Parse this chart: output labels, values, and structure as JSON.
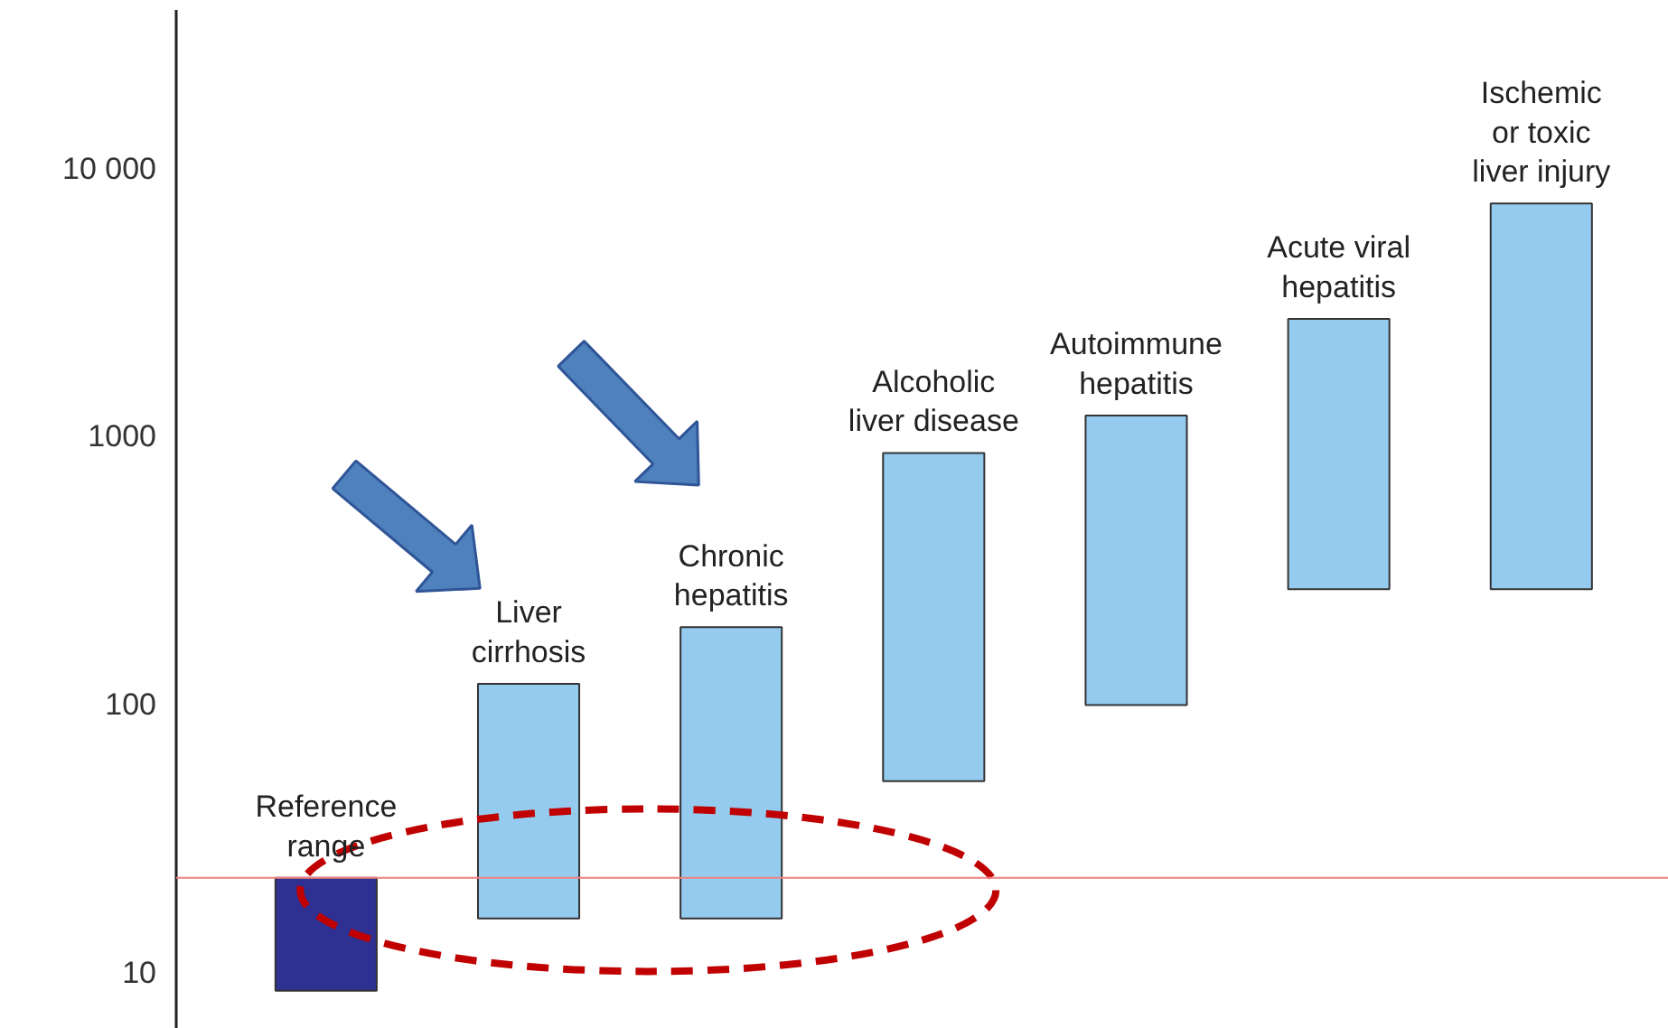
{
  "chart_data": {
    "type": "bar",
    "categories": [
      "Reference\nrange",
      "Liver\ncirrhosis",
      "Chronic\nhepatitis",
      "Alcoholic\nliver disease",
      "Autoimmune\nhepatitis",
      "Acute viral\nhepatitis",
      "Ischemic\nor toxic\nliver injury"
    ],
    "base": [
      8.6,
      16,
      16,
      52,
      100,
      270,
      270
    ],
    "values": [
      14.1,
      104,
      179,
      818,
      1100,
      2480,
      7130
    ],
    "colors": [
      "#2e3192",
      "#94cbee",
      "#94cbee",
      "#94cbee",
      "#94cbee",
      "#94cbee",
      "#94cbee"
    ],
    "log": true,
    "ylim": [
      6.2,
      39000
    ],
    "yticks": [
      10,
      100,
      1000,
      {
        "value": 10000,
        "label": "10 000"
      }
    ],
    "ref_lines": [
      {
        "axis": "y",
        "value": 22.7,
        "color": "#f08080"
      }
    ],
    "grid": false
  }
}
